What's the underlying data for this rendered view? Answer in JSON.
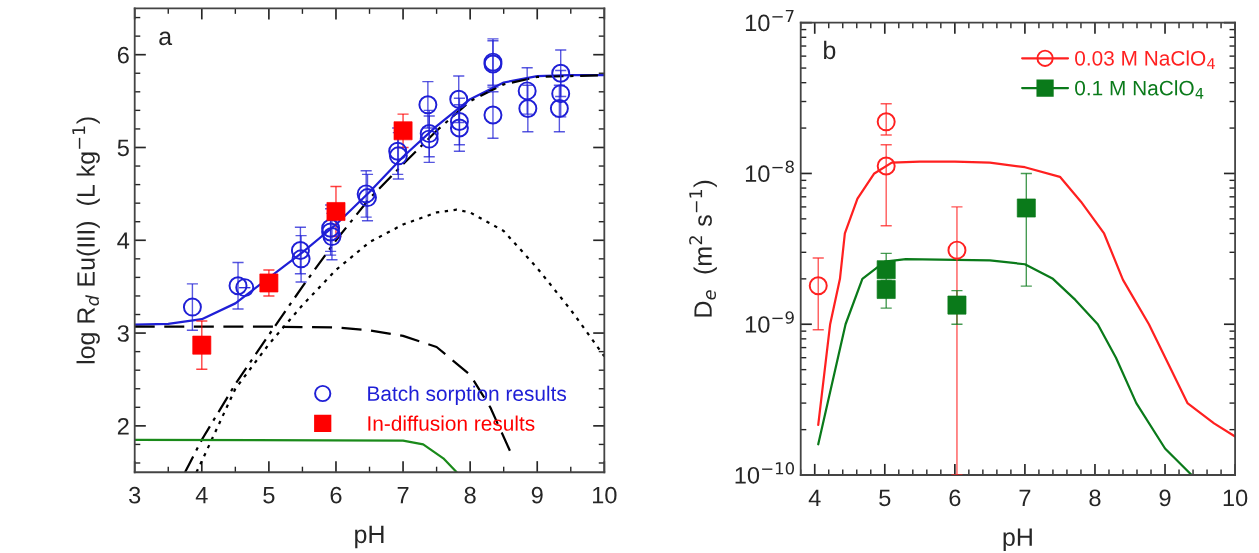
{
  "chart_data": [
    {
      "type": "scatter",
      "xlabel": "pH",
      "ylabel": "log R$_{d}$ Eu(III)  (L kg$^{−1}$)",
      "annotations": [
        "a"
      ],
      "xlim": [
        3,
        10
      ],
      "ylim": [
        1.5,
        6.5
      ],
      "xticks": [
        3,
        4,
        5,
        6,
        7,
        8,
        9,
        10
      ],
      "yticks": [
        2,
        3,
        4,
        5,
        6
      ],
      "legend": "bottom right",
      "grid": false,
      "series": [
        {
          "name": "Batch sorption results",
          "marker": "circle",
          "color": "#1f1fd6",
          "x": [
            3.86,
            4.54,
            4.64,
            5.47,
            5.48,
            5.92,
            5.92,
            5.94,
            6.45,
            6.47,
            6.92,
            6.93,
            7.37,
            7.39,
            7.39,
            7.83,
            7.84,
            7.84,
            8.34,
            8.34,
            8.34,
            8.85,
            8.86,
            9.35,
            9.35,
            9.33
          ],
          "values": [
            3.28,
            3.51,
            3.49,
            3.89,
            3.8,
            4.13,
            4.09,
            4.04,
            4.5,
            4.46,
            4.96,
            4.91,
            5.46,
            5.15,
            5.09,
            5.52,
            5.28,
            5.21,
            5.92,
            5.9,
            5.35,
            5.61,
            5.42,
            5.8,
            5.58,
            5.42
          ],
          "errors": [
            0.25,
            0.25,
            null,
            0.25,
            0.25,
            0.25,
            0.25,
            0.25,
            0.25,
            0.25,
            0.25,
            0.25,
            0.25,
            0.25,
            0.25,
            0.25,
            0.25,
            0.25,
            0.25,
            0.25,
            0.25,
            0.25,
            0.25,
            0.25,
            0.25,
            0.25
          ]
        },
        {
          "name": "In-diffusion results",
          "marker": "square",
          "color": "#ff0000",
          "x": [
            4.0,
            5.0,
            6.0,
            7.0
          ],
          "values": [
            2.87,
            3.54,
            4.31,
            5.18
          ],
          "errors": [
            0.26,
            0.14,
            0.27,
            0.18
          ]
        },
        {
          "type": "line",
          "line_style": "solid",
          "color": "#1f1fd6",
          "x": [
            3,
            3.5,
            4,
            4.5,
            5.5,
            6,
            6.5,
            7,
            7.5,
            8,
            8.5,
            9,
            9.5,
            10
          ],
          "values": [
            3.09,
            3.1,
            3.15,
            3.32,
            3.87,
            4.17,
            4.52,
            4.9,
            5.23,
            5.52,
            5.7,
            5.77,
            5.78,
            5.78
          ]
        },
        {
          "type": "line",
          "line_style": "dashdot",
          "color": "#000000",
          "x": [
            3.75,
            4,
            4.5,
            5,
            5.5,
            6,
            6.5,
            7,
            7.5,
            8,
            8.5,
            9,
            10
          ],
          "values": [
            1.5,
            1.85,
            2.45,
            2.98,
            3.5,
            4.0,
            4.45,
            4.82,
            5.18,
            5.5,
            5.68,
            5.76,
            5.78
          ]
        },
        {
          "type": "line",
          "line_style": "dotted",
          "color": "#000000",
          "x": [
            3.92,
            4,
            4.5,
            5,
            5.5,
            6,
            6.5,
            7,
            7.5,
            7.8,
            8,
            8.5,
            9,
            9.5,
            10
          ],
          "values": [
            1.5,
            1.62,
            2.4,
            2.88,
            3.3,
            3.68,
            3.98,
            4.17,
            4.3,
            4.33,
            4.3,
            4.1,
            3.7,
            3.25,
            2.75
          ]
        },
        {
          "type": "line",
          "line_style": "dashed",
          "color": "#000000",
          "x": [
            3,
            5,
            6,
            6.5,
            7,
            7.5,
            8,
            8.3,
            8.6
          ],
          "values": [
            3.07,
            3.07,
            3.06,
            3.03,
            2.97,
            2.85,
            2.55,
            2.2,
            1.72
          ]
        },
        {
          "type": "line",
          "line_style": "solid",
          "color": "#1a8a1a",
          "x": [
            3,
            7,
            7.3,
            7.6,
            7.8
          ],
          "values": [
            1.85,
            1.84,
            1.8,
            1.65,
            1.5
          ]
        }
      ]
    },
    {
      "type": "scatter",
      "xlabel": "pH",
      "ylabel": "D$_{e}$  (m$^{2}$ s$^{−1}$)",
      "annotations": [
        "b"
      ],
      "log": "y",
      "xlim": [
        3.8,
        10
      ],
      "ylim": [
        1e-10,
        1e-07
      ],
      "xticks": [
        4,
        5,
        6,
        7,
        8,
        9,
        10
      ],
      "yticks": [
        {
          "value": 1e-10,
          "label": "10$^{−10}$"
        },
        {
          "value": 1e-09,
          "label": "10$^{−9}$"
        },
        {
          "value": 1e-08,
          "label": "10$^{−8}$"
        },
        {
          "value": 1e-07,
          "label": "10$^{−7}$"
        }
      ],
      "legend": "top right",
      "grid": false,
      "series": [
        {
          "name": "0.03 M NaClO$_{4}$",
          "marker": "circle",
          "color": "#ff2020",
          "x": [
            4.05,
            5.02,
            5.02,
            6.03
          ],
          "values": [
            1.8e-09,
            2.2e-08,
            1.12e-08,
            3.1e-09
          ],
          "errors": [
            [
              9.2e-10,
              2.75e-09
            ],
            [
              1.8e-08,
              2.9e-08
            ],
            [
              4.5e-09,
              1.55e-08
            ],
            [
              1e-10,
              6e-09
            ]
          ]
        },
        {
          "name": "0.1 M NaClO$_{4}$",
          "marker": "square",
          "color": "#0a7a1a",
          "x": [
            5.02,
            5.02,
            6.03,
            7.02
          ],
          "values": [
            2.3e-09,
            1.7e-09,
            1.34e-09,
            5.9e-09
          ],
          "errors": [
            [
              1.95e-09,
              2.95e-09
            ],
            [
              1.28e-09,
              1.7e-09
            ],
            [
              1e-09,
              1.67e-09
            ],
            [
              1.79e-09,
              1e-08
            ]
          ]
        },
        {
          "type": "line",
          "line_style": "solid",
          "color": "#ff2020",
          "x": [
            4.05,
            4.22,
            4.36,
            4.43,
            4.61,
            4.85,
            5.1,
            5.5,
            6.0,
            6.5,
            7.0,
            7.5,
            7.8,
            8.13,
            8.4,
            8.77,
            9.32,
            9.7,
            10
          ],
          "values": [
            2.15e-10,
            1e-09,
            2e-09,
            4e-09,
            6.8e-09,
            1e-08,
            1.18e-08,
            1.2e-08,
            1.2e-08,
            1.18e-08,
            1.1e-08,
            9.5e-09,
            6.5e-09,
            4e-09,
            1.97e-09,
            1e-09,
            3e-10,
            2.2e-10,
            1.8e-10
          ]
        },
        {
          "type": "line",
          "line_style": "solid",
          "color": "#0a7a1a",
          "x": [
            4.05,
            4.44,
            4.68,
            5.0,
            5.3,
            6.5,
            7.0,
            7.4,
            7.72,
            8.04,
            8.3,
            8.59,
            9.0,
            9.38
          ],
          "values": [
            1.6e-10,
            1e-09,
            2e-09,
            2.6e-09,
            2.7e-09,
            2.65e-09,
            2.5e-09,
            2e-09,
            1.45e-09,
            1e-09,
            6e-10,
            3e-10,
            1.5e-10,
            1e-10
          ]
        }
      ]
    }
  ]
}
